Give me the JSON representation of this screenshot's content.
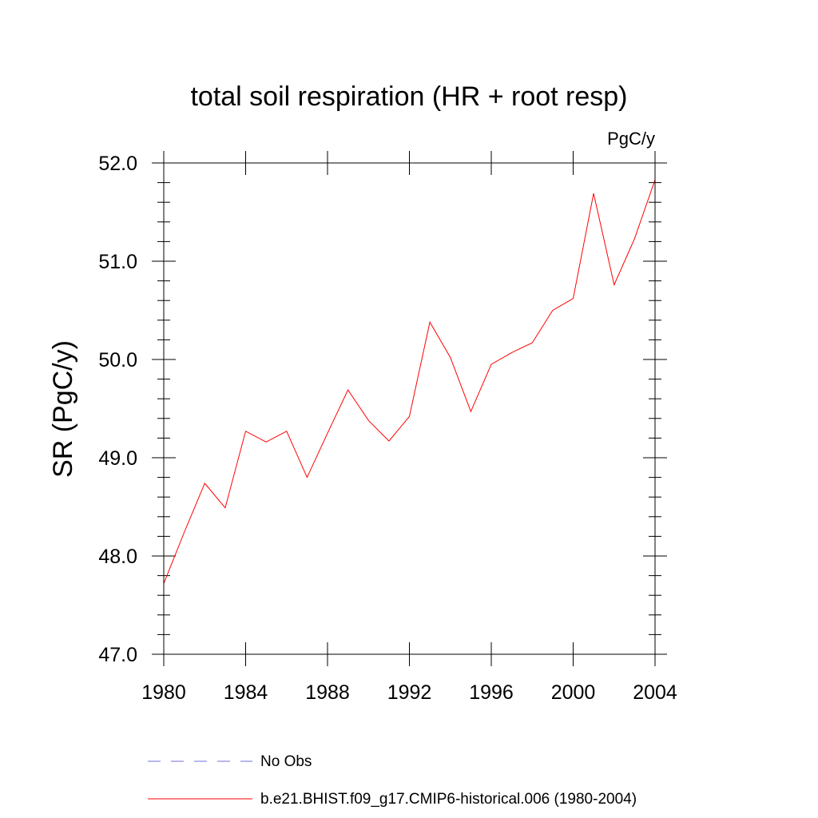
{
  "chart_data": {
    "type": "line",
    "title": "total soil respiration (HR + root resp)",
    "units_label": "PgC/y",
    "xlabel": "",
    "ylabel": "SR  (PgC/y)",
    "xlim": [
      1980,
      2004
    ],
    "ylim": [
      47.0,
      52.0
    ],
    "x_ticks": [
      1980,
      1984,
      1988,
      1992,
      1996,
      2000,
      2004
    ],
    "x_tick_labels": [
      "1980",
      "1984",
      "1988",
      "1992",
      "1996",
      "2000",
      "2004"
    ],
    "y_ticks": [
      47.0,
      48.0,
      49.0,
      50.0,
      51.0,
      52.0
    ],
    "y_tick_labels": [
      "47.0",
      "48.0",
      "49.0",
      "50.0",
      "51.0",
      "52.0"
    ],
    "grid": false,
    "legend_position": "bottom",
    "series": [
      {
        "name": "b.e21.BHIST.f09_g17.CMIP6-historical.006 (1980-2004)",
        "color": "#ff0000",
        "dash": "solid",
        "x": [
          1980,
          1981,
          1982,
          1983,
          1984,
          1985,
          1986,
          1987,
          1988,
          1989,
          1990,
          1991,
          1992,
          1993,
          1994,
          1995,
          1996,
          1997,
          1998,
          1999,
          2000,
          2001,
          2002,
          2003,
          2004
        ],
        "values": [
          47.72,
          48.24,
          48.74,
          48.49,
          49.27,
          49.16,
          49.27,
          48.8,
          49.25,
          49.69,
          49.38,
          49.17,
          49.42,
          50.38,
          50.02,
          49.47,
          49.95,
          50.07,
          50.17,
          50.5,
          50.62,
          51.69,
          50.76,
          51.23,
          51.83
        ]
      }
    ],
    "legend": [
      {
        "label": "No Obs",
        "color": "#7070e0",
        "dash": "dashed"
      },
      {
        "label": "b.e21.BHIST.f09_g17.CMIP6-historical.006 (1980-2004)",
        "color": "#ff0000",
        "dash": "solid"
      }
    ]
  }
}
